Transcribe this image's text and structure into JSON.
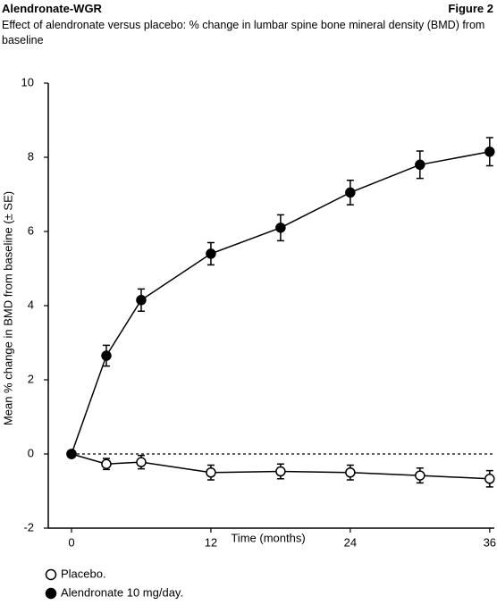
{
  "header": {
    "title": "Alendronate-WGR",
    "figure": "Figure 2",
    "subtitle": "Effect of alendronate versus placebo: % change in lumbar spine bone mineral density (BMD) from baseline"
  },
  "chart_data": {
    "type": "line",
    "x_label": "Time (months)",
    "y_label": "Mean % change in BMD from baseline (± SE)",
    "x": [
      0,
      3,
      6,
      12,
      18,
      24,
      30,
      36
    ],
    "series": [
      {
        "name": "Placebo.",
        "color": "#ffffff",
        "values": [
          0,
          -0.27,
          -0.22,
          -0.5,
          -0.47,
          -0.5,
          -0.58,
          -0.67
        ],
        "errors": [
          null,
          0.15,
          0.18,
          0.2,
          0.2,
          0.2,
          0.2,
          0.22
        ]
      },
      {
        "name": "Alendronate 10 mg/day.",
        "color": "#000000",
        "values": [
          0,
          2.65,
          4.15,
          5.4,
          6.1,
          7.05,
          7.8,
          8.15
        ],
        "errors": [
          null,
          0.28,
          0.3,
          0.3,
          0.35,
          0.33,
          0.37,
          0.38
        ]
      }
    ],
    "line_color": "#000000",
    "reference_line": 0,
    "xlim": [
      -2,
      36.4
    ],
    "xticks": [
      0,
      12,
      24,
      36
    ],
    "ylim": [
      -2,
      10
    ],
    "yticks": [
      -2,
      0,
      2,
      4,
      6,
      8,
      10
    ]
  }
}
